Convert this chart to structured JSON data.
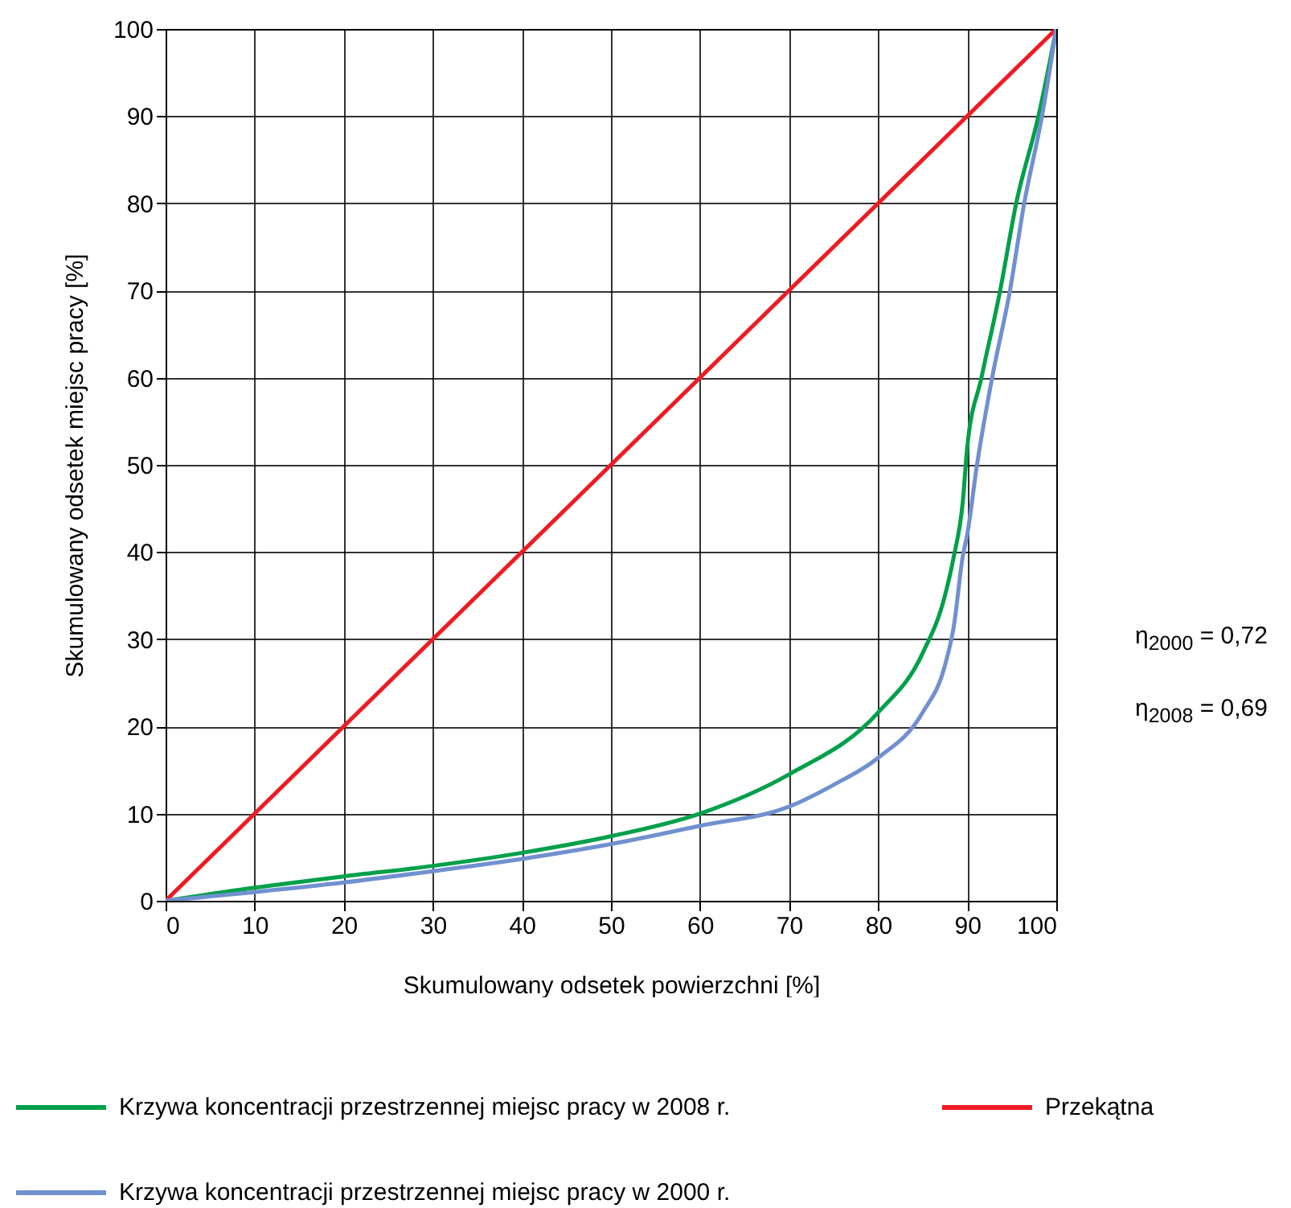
{
  "chart_data": {
    "type": "line",
    "xlabel": "Skumulowany odsetek powierzchni [%]",
    "ylabel": "Skumulowany odsetek miejsc pracy [%]",
    "xlim": [
      0,
      100
    ],
    "ylim": [
      0,
      100
    ],
    "xticks": [
      0,
      10,
      20,
      30,
      40,
      50,
      60,
      70,
      80,
      90,
      100
    ],
    "yticks": [
      0,
      10,
      20,
      30,
      40,
      50,
      60,
      70,
      80,
      90,
      100
    ],
    "grid": true,
    "legend": "bottom",
    "marker": "none",
    "line_style": "solid",
    "annotations": [
      "η$_{2000}$ = 0,72",
      "η$_{2008}$ = 0,69"
    ],
    "series": [
      {
        "name": "Krzywa koncentracji przestrzennej miejsc pracy w 2008 r.",
        "color": "#00a04a",
        "x": [
          0,
          10,
          20,
          30,
          40,
          50,
          60,
          70,
          80,
          85,
          87.5,
          88.5,
          89.5,
          90,
          91.6,
          93.7,
          95.5,
          98,
          100
        ],
        "values": [
          0,
          1.5,
          2.8,
          4,
          5.5,
          7.4,
          10,
          14.5,
          21.6,
          28.4,
          35,
          39.5,
          45.7,
          52,
          60,
          70,
          80,
          90,
          100
        ]
      },
      {
        "name": "Przekątna",
        "color": "#ed1c24",
        "x": [
          0,
          100
        ],
        "values": [
          0,
          100
        ]
      },
      {
        "name": "Krzywa koncentracji przestrzennej miejsc pracy w 2000 r.",
        "color": "#7090d0",
        "x": [
          0,
          10,
          20,
          30,
          40,
          50,
          60,
          70,
          75,
          80,
          85,
          87.5,
          88.5,
          89.5,
          90,
          91.1,
          92.8,
          94.8,
          96.4,
          98.4,
          100
        ],
        "values": [
          0,
          1,
          2.1,
          3.4,
          4.8,
          6.5,
          8.6,
          10.8,
          13.3,
          16.4,
          21.6,
          27,
          31.5,
          39.5,
          42,
          50,
          60,
          70,
          80,
          90,
          100
        ]
      }
    ]
  }
}
